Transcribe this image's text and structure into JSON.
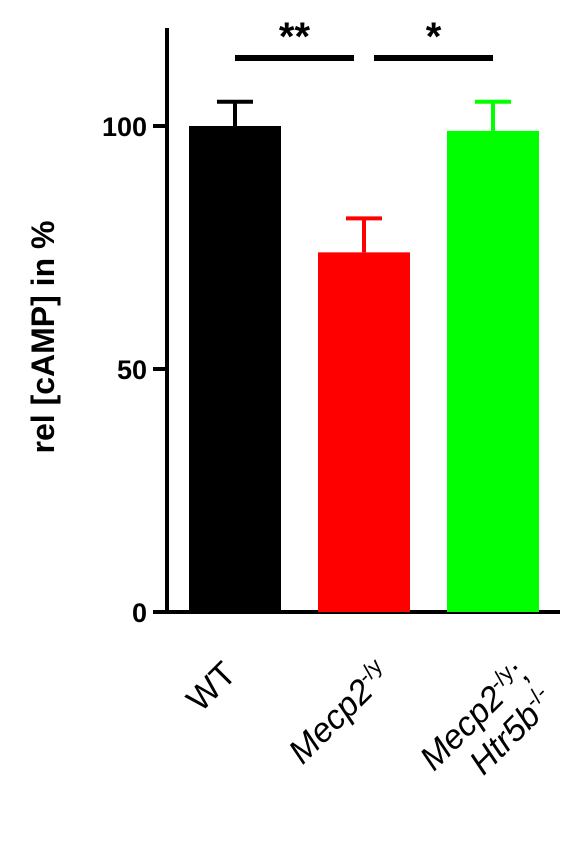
{
  "chart_data": {
    "type": "bar",
    "title": "",
    "xlabel": "",
    "ylabel": "rel [cAMP] in %",
    "ylim": [
      0,
      120
    ],
    "yticks": [
      0,
      50,
      100
    ],
    "grid": false,
    "categories": [
      {
        "name": "WT",
        "parts": [
          {
            "text": "WT",
            "italic": false
          }
        ]
      },
      {
        "name": "Mecp2-/y",
        "parts": [
          {
            "text": "Mecp2",
            "italic": true
          },
          {
            "text": "-/y",
            "sup": true
          }
        ]
      },
      {
        "name": "Mecp2-/y; Htr5b-/-",
        "lines": [
          [
            {
              "text": "Mecp2",
              "italic": true
            },
            {
              "text": "-/y",
              "sup": true
            },
            {
              "text": ";",
              "italic": false
            }
          ],
          [
            {
              "text": "Htr5b",
              "italic": true
            },
            {
              "text": "-/-",
              "sup": true
            }
          ]
        ]
      }
    ],
    "values": [
      100,
      74,
      99
    ],
    "errors": [
      5,
      7,
      6
    ],
    "colors": [
      "#000000",
      "#ff0000",
      "#00ff00"
    ],
    "significance": [
      {
        "from": 0,
        "to": 1,
        "label": "**"
      },
      {
        "from": 1,
        "to": 2,
        "label": "*"
      }
    ]
  }
}
